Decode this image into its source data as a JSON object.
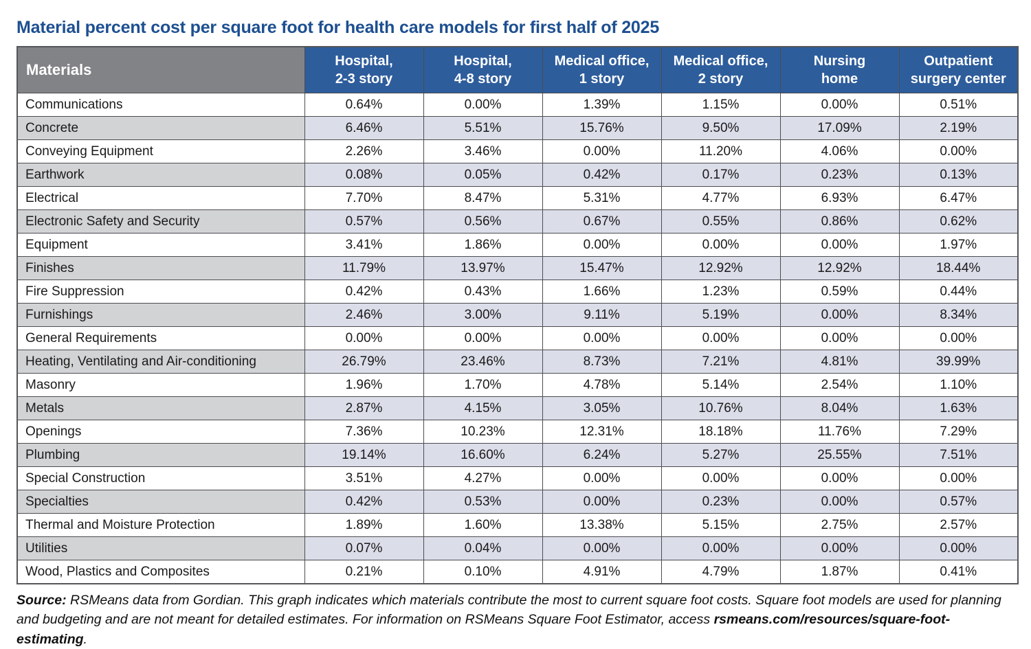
{
  "page": {
    "title": "Material percent cost per square foot for health care models for first half of 2025"
  },
  "colors": {
    "title_blue": "#1d4f91",
    "header_blue": "#2e5d9c",
    "materials_header_gray": "#828387",
    "shaded_material_cell": "#d2d3d5",
    "shaded_value_cell": "#dbdde9",
    "grid_line": "#4b4c4f"
  },
  "chart_data": {
    "type": "table",
    "title": "Material percent cost per square foot for health care models for first half of 2025",
    "row_header": "Materials",
    "columns": [
      "Hospital, 2-3 story",
      "Hospital, 4-8 story",
      "Medical office, 1 story",
      "Medical office, 2 story",
      "Nursing home",
      "Outpatient surgery center"
    ],
    "column_header_lines": [
      [
        "Hospital,",
        "2-3 story"
      ],
      [
        "Hospital,",
        "4-8 story"
      ],
      [
        "Medical office,",
        "1 story"
      ],
      [
        "Medical office,",
        "2 story"
      ],
      [
        "Nursing",
        "home"
      ],
      [
        "Outpatient",
        "surgery center"
      ]
    ],
    "value_format": "percent_2dp",
    "rows": [
      {
        "material": "Communications",
        "values": [
          0.64,
          0.0,
          1.39,
          1.15,
          0.0,
          0.51
        ]
      },
      {
        "material": "Concrete",
        "values": [
          6.46,
          5.51,
          15.76,
          9.5,
          17.09,
          2.19
        ]
      },
      {
        "material": "Conveying Equipment",
        "values": [
          2.26,
          3.46,
          0.0,
          11.2,
          4.06,
          0.0
        ]
      },
      {
        "material": "Earthwork",
        "values": [
          0.08,
          0.05,
          0.42,
          0.17,
          0.23,
          0.13
        ]
      },
      {
        "material": "Electrical",
        "values": [
          7.7,
          8.47,
          5.31,
          4.77,
          6.93,
          6.47
        ]
      },
      {
        "material": "Electronic Safety and Security",
        "values": [
          0.57,
          0.56,
          0.67,
          0.55,
          0.86,
          0.62
        ]
      },
      {
        "material": "Equipment",
        "values": [
          3.41,
          1.86,
          0.0,
          0.0,
          0.0,
          1.97
        ]
      },
      {
        "material": "Finishes",
        "values": [
          11.79,
          13.97,
          15.47,
          12.92,
          12.92,
          18.44
        ]
      },
      {
        "material": "Fire Suppression",
        "values": [
          0.42,
          0.43,
          1.66,
          1.23,
          0.59,
          0.44
        ]
      },
      {
        "material": "Furnishings",
        "values": [
          2.46,
          3.0,
          9.11,
          5.19,
          0.0,
          8.34
        ]
      },
      {
        "material": "General Requirements",
        "values": [
          0.0,
          0.0,
          0.0,
          0.0,
          0.0,
          0.0
        ]
      },
      {
        "material": "Heating, Ventilating and Air-conditioning",
        "values": [
          26.79,
          23.46,
          8.73,
          7.21,
          4.81,
          39.99
        ]
      },
      {
        "material": "Masonry",
        "values": [
          1.96,
          1.7,
          4.78,
          5.14,
          2.54,
          1.1
        ]
      },
      {
        "material": "Metals",
        "values": [
          2.87,
          4.15,
          3.05,
          10.76,
          8.04,
          1.63
        ]
      },
      {
        "material": "Openings",
        "values": [
          7.36,
          10.23,
          12.31,
          18.18,
          11.76,
          7.29
        ]
      },
      {
        "material": "Plumbing",
        "values": [
          19.14,
          16.6,
          6.24,
          5.27,
          25.55,
          7.51
        ]
      },
      {
        "material": "Special Construction",
        "values": [
          3.51,
          4.27,
          0.0,
          0.0,
          0.0,
          0.0
        ]
      },
      {
        "material": "Specialties",
        "values": [
          0.42,
          0.53,
          0.0,
          0.23,
          0.0,
          0.57
        ]
      },
      {
        "material": "Thermal and Moisture Protection",
        "values": [
          1.89,
          1.6,
          13.38,
          5.15,
          2.75,
          2.57
        ]
      },
      {
        "material": "Utilities",
        "values": [
          0.07,
          0.04,
          0.0,
          0.0,
          0.0,
          0.0
        ]
      },
      {
        "material": "Wood, Plastics and Composites",
        "values": [
          0.21,
          0.1,
          4.91,
          4.79,
          1.87,
          0.41
        ]
      }
    ]
  },
  "footer": {
    "source_label": "Source:",
    "text_before": " RSMeans data from Gordian. This graph indicates which materials contribute the most to current square foot costs. Square foot models are used for planning and budgeting and are not meant for detailed estimates. For information on RSMeans Square Foot Estimator, access ",
    "link": "rsmeans.com/resources/square-foot-estimating",
    "text_after": "."
  }
}
